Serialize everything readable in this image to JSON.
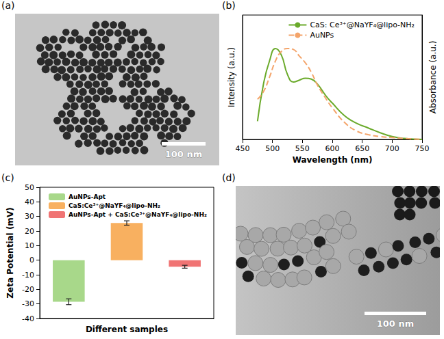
{
  "chart_data": [
    {
      "panel_label": "(b)",
      "type": "line",
      "x_label": "Wavelength (nm)",
      "y_label": "Intensity (a.u.)",
      "y2_label": "Absorbance (a.u.)",
      "x": [
        475,
        485,
        495,
        505,
        515,
        525,
        535,
        545,
        555,
        565,
        575,
        590,
        600,
        620,
        640,
        660,
        680,
        700,
        720,
        750
      ],
      "series": [
        {
          "name": "CaS: Ce³⁺@NaYF₄@lipo-NH₂",
          "color": "#6aaa2a",
          "line_style": "solid",
          "values": [
            0.19,
            0.58,
            0.82,
            0.95,
            0.88,
            0.68,
            0.6,
            0.62,
            0.64,
            0.63,
            0.58,
            0.45,
            0.38,
            0.25,
            0.17,
            0.12,
            0.07,
            0.03,
            0.01,
            0.0
          ]
        },
        {
          "name": "AuNPs",
          "color": "#f4a46a",
          "line_style": "dashed",
          "axis": "y2",
          "values": [
            0.42,
            0.5,
            0.65,
            0.82,
            0.92,
            0.95,
            0.94,
            0.87,
            0.8,
            0.7,
            0.57,
            0.42,
            0.33,
            0.18,
            0.09,
            0.05,
            0.03,
            0.02,
            0.01,
            0.0
          ]
        }
      ],
      "xlim": [
        450,
        750
      ],
      "xticks": [
        450,
        500,
        550,
        600,
        650,
        700,
        750
      ],
      "ylim": [
        0,
        1.3
      ],
      "yticks": [],
      "y2lim": [
        0,
        1.3
      ],
      "y2ticks": [],
      "tick_labels": "x",
      "legend": "top-right",
      "grid": false
    },
    {
      "panel_label": "(c)",
      "type": "bar",
      "x_label": "Different samples",
      "y_label": "Zeta Potential (mV)",
      "categories": [
        null,
        null,
        null
      ],
      "series": [
        {
          "name": "AuNPs-Apt",
          "color": "#a8d88a",
          "values": [
            -28.5,
            null,
            null
          ],
          "errors": [
            2,
            null,
            null
          ]
        },
        {
          "name": "CaS:Ce³⁺@NaYF₄@lipo-NH₂",
          "color": "#f8b060",
          "values": [
            null,
            25.5,
            null
          ],
          "errors": [
            null,
            1.5,
            null
          ]
        },
        {
          "name": "AuNPs-Apt + CaS:Ce³⁺@NaYF₄@lipo-NH₂",
          "color": "#f07474",
          "values": [
            null,
            null,
            -4.5
          ],
          "errors": [
            null,
            null,
            1
          ]
        }
      ],
      "ylim": [
        -40,
        50
      ],
      "yticks": [
        -40,
        -30,
        -20,
        -10,
        0,
        10,
        20,
        30,
        40,
        50
      ],
      "tick_labels": "y",
      "legend": "top-left",
      "grid": false
    }
  ],
  "images": [
    {
      "panel_label": "(a)",
      "scale_bar": "100 nm"
    },
    {
      "panel_label": "(d)",
      "scale_bar": "100 nm"
    }
  ]
}
